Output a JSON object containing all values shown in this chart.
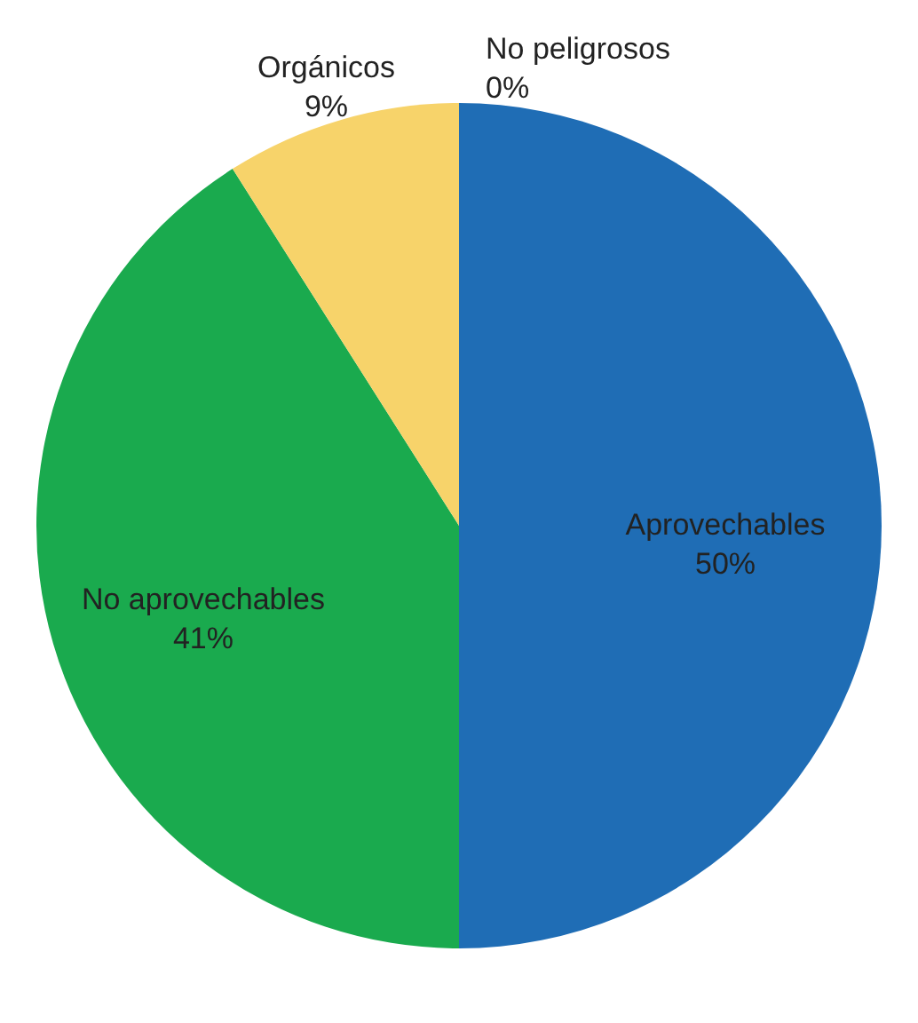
{
  "chart_data": {
    "type": "pie",
    "categories": [
      "Aprovechables",
      "No aprovechables",
      "Orgánicos",
      "No peligrosos"
    ],
    "values": [
      50,
      41,
      9,
      0
    ],
    "colors": [
      "#1f6db5",
      "#1aaa4e",
      "#f7d36a",
      "#e06b2c"
    ],
    "value_labels": [
      "50%",
      "41%",
      "9%",
      "0%"
    ]
  }
}
